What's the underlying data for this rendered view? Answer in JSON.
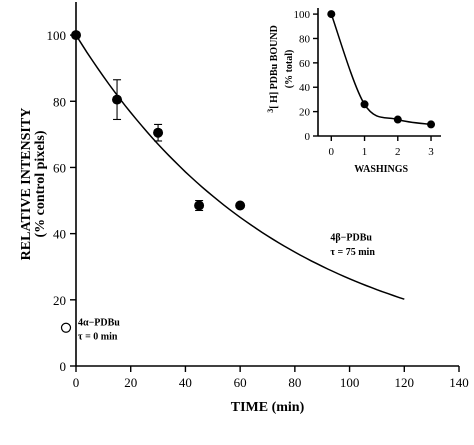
{
  "chart_data": [
    {
      "type": "line",
      "xlabel": "TIME (min)",
      "ylabel_line1": "RELATIVE INTENSITY",
      "ylabel_line2": "(% control pixels)",
      "xlim": [
        0,
        140
      ],
      "ylim": [
        0,
        110
      ],
      "xticks": [
        0,
        20,
        40,
        60,
        80,
        100,
        120,
        140
      ],
      "yticks": [
        0,
        20,
        40,
        60,
        80,
        100
      ],
      "series": [
        {
          "name": "4β−PDBu",
          "kind": "points",
          "x": [
            0,
            15,
            30,
            45,
            60
          ],
          "y": [
            100,
            80.5,
            70.5,
            48.5,
            48.5
          ],
          "err": [
            1,
            6,
            2.5,
            1.5,
            1
          ]
        },
        {
          "name": "4β−PDBu fit",
          "kind": "curve",
          "tau": 75,
          "x": [
            0,
            10,
            20,
            30,
            40,
            50,
            60,
            70,
            80,
            90,
            100,
            110,
            120
          ],
          "y": [
            100,
            87.5,
            76.6,
            67.0,
            58.7,
            51.3,
            44.9,
            39.3,
            34.4,
            30.1,
            26.4,
            23.1,
            20.2
          ]
        },
        {
          "name": "4α−PDBu",
          "kind": "hollow-point",
          "x": [
            0
          ],
          "y": [
            2.5
          ]
        }
      ],
      "annotations": {
        "beta_line1": "4β−PDBu",
        "beta_line2": "τ = 75 min",
        "alpha_line1": "4α−PDBu",
        "alpha_line2": "τ = 0 min"
      }
    },
    {
      "type": "line",
      "xlabel": "WASHINGS",
      "ylabel_line1": "[³H] PDBu BOUND",
      "ylabel_line2": "(% total)",
      "ylabel_sup": "3",
      "ylabel_main": "[ H] PDBu BOUND",
      "xlim": [
        -0.4,
        3.3
      ],
      "ylim": [
        0,
        105
      ],
      "xticks": [
        0,
        1,
        2,
        3
      ],
      "yticks": [
        0,
        20,
        40,
        60,
        80,
        100
      ],
      "series": [
        {
          "name": "bound",
          "x": [
            0,
            1,
            2,
            3
          ],
          "y": [
            100,
            26,
            13.5,
            9.5
          ]
        }
      ]
    }
  ]
}
